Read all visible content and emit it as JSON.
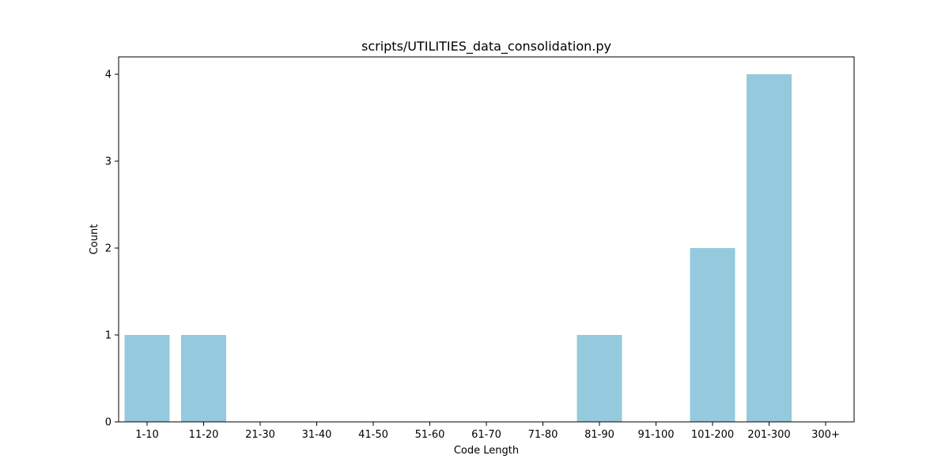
{
  "chart_data": {
    "type": "bar",
    "title": "scripts/UTILITIES_data_consolidation.py",
    "xlabel": "Code Length",
    "ylabel": "Count",
    "categories": [
      "1-10",
      "11-20",
      "21-30",
      "31-40",
      "41-50",
      "51-60",
      "61-70",
      "71-80",
      "81-90",
      "91-100",
      "101-200",
      "201-300",
      "300+"
    ],
    "values": [
      1,
      1,
      0,
      0,
      0,
      0,
      0,
      0,
      1,
      0,
      2,
      4,
      0
    ],
    "yticks": [
      0,
      1,
      2,
      3,
      4
    ],
    "ylim": [
      0,
      4.2
    ],
    "bar_color": "#95c9de",
    "grid": false,
    "legend": false
  }
}
